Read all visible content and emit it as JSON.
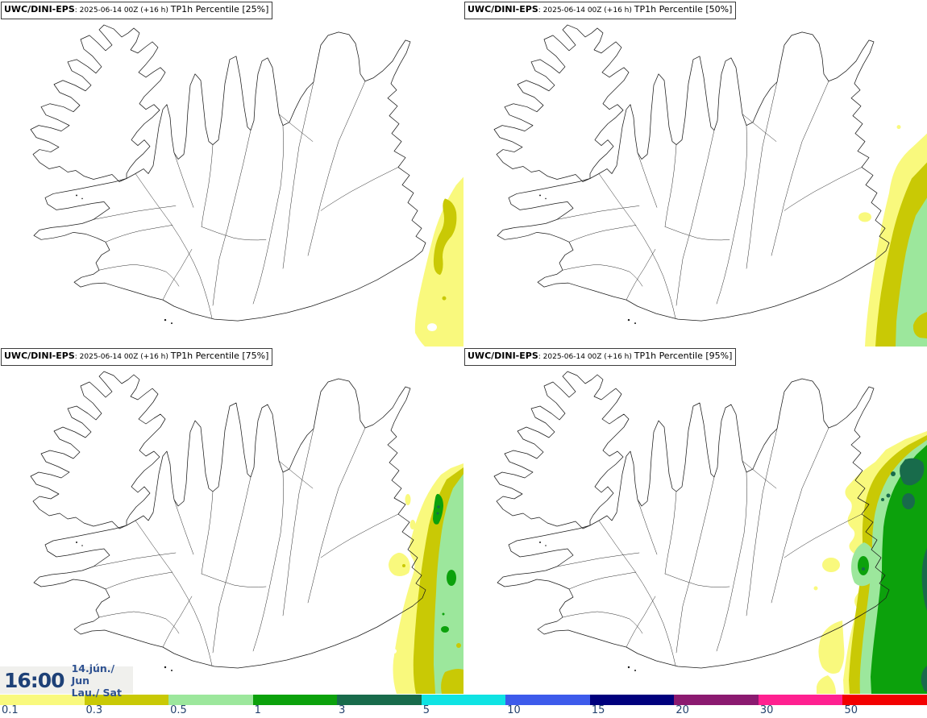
{
  "panels": [
    {
      "model": "UWC/DINI-EPS",
      "sep": ": ",
      "run": "2025-06-14 00Z (+16 h) ",
      "product": "TP1h Percentile ",
      "percentile": "[25%]"
    },
    {
      "model": "UWC/DINI-EPS",
      "sep": ": ",
      "run": "2025-06-14 00Z (+16 h) ",
      "product": "TP1h Percentile ",
      "percentile": "[50%]"
    },
    {
      "model": "UWC/DINI-EPS",
      "sep": ": ",
      "run": "2025-06-14 00Z (+16 h) ",
      "product": "TP1h Percentile ",
      "percentile": "[75%]"
    },
    {
      "model": "UWC/DINI-EPS",
      "sep": ": ",
      "run": "2025-06-14 00Z (+16 h) ",
      "product": "TP1h Percentile ",
      "percentile": "[95%]"
    }
  ],
  "time_block": {
    "clock": "16:00",
    "date_top": "14.jún./ Jun",
    "date_bottom": "Lau./ Sat"
  },
  "colorbar": {
    "labels": [
      "0.1",
      "0.3",
      "0.5",
      "1",
      "3",
      "5",
      "10",
      "15",
      "20",
      "30",
      "50"
    ],
    "colors": [
      "#f9f97d",
      "#c9c905",
      "#9ce79c",
      "#0ca10c",
      "#186b4b",
      "#0fe3e3",
      "#3d5beb",
      "#00007d",
      "#8b1a70",
      "#ff2090",
      "#f30000"
    ],
    "label_color": "#24426e",
    "outline_color": "#1a1a1a"
  }
}
